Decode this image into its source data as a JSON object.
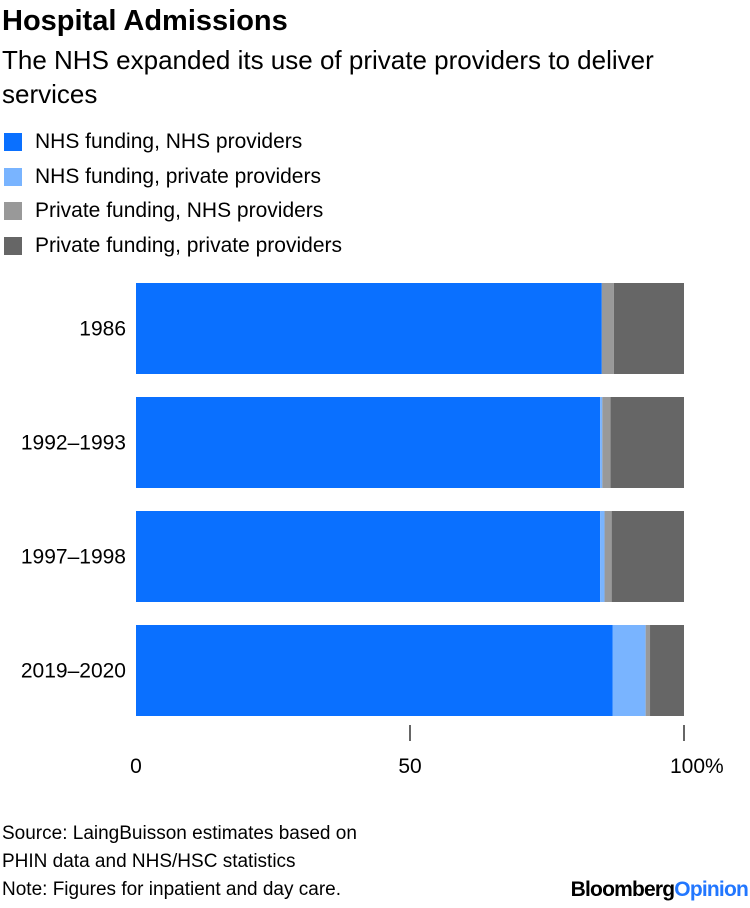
{
  "header": {
    "title": "Hospital Admissions",
    "subtitle": "The NHS expanded its use of private providers to deliver services"
  },
  "legend": {
    "items": [
      {
        "label": "NHS funding, NHS providers",
        "color": "#0a70ff"
      },
      {
        "label": "NHS funding, private providers",
        "color": "#79b4ff"
      },
      {
        "label": "Private funding, NHS providers",
        "color": "#999999"
      },
      {
        "label": "Private funding, private providers",
        "color": "#666666"
      }
    ]
  },
  "chart_data": {
    "type": "bar",
    "orientation": "horizontal",
    "stacked": true,
    "categories": [
      "1986",
      "1992–1993",
      "1997–1998",
      "2019–2020"
    ],
    "series": [
      {
        "name": "NHS funding, NHS providers",
        "color": "#0a70ff",
        "values": [
          85,
          84.7,
          84.7,
          87
        ]
      },
      {
        "name": "NHS funding, private providers",
        "color": "#79b4ff",
        "values": [
          0,
          0.4,
          0.8,
          6
        ]
      },
      {
        "name": "Private funding, NHS providers",
        "color": "#999999",
        "values": [
          2.2,
          1.5,
          1.3,
          0.8
        ]
      },
      {
        "name": "Private funding, private providers",
        "color": "#666666",
        "values": [
          12.8,
          13.4,
          13.2,
          6.2
        ]
      }
    ],
    "xlim": [
      0,
      100
    ],
    "x_ticks": [
      {
        "value": 0,
        "label": "0"
      },
      {
        "value": 50,
        "label": "50"
      },
      {
        "value": 100,
        "label": "100%"
      }
    ],
    "grid": false,
    "legend_position": "top-left"
  },
  "footer": {
    "source_lines": [
      "Source: LaingBuisson estimates based on",
      "PHIN data and NHS/HSC statistics",
      "Note: Figures for inpatient and day care."
    ],
    "brand_main": "Bloomberg",
    "brand_accent": "Opinion"
  }
}
